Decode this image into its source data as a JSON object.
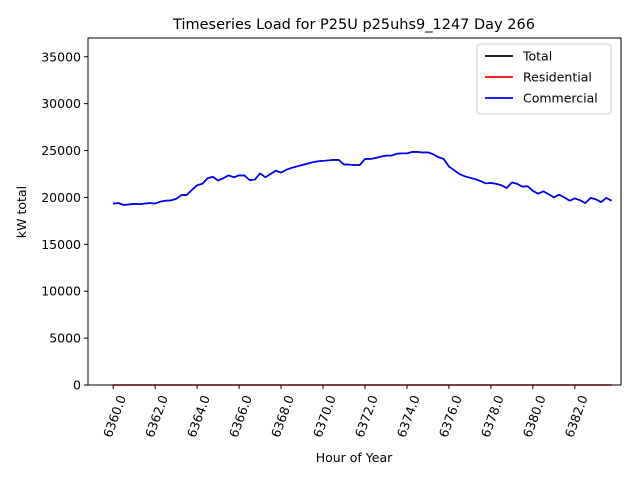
{
  "chart_data": {
    "type": "line",
    "title": "Timeseries Load for P25U p25uhs9_1247  Day 266",
    "xlabel": "Hour of Year",
    "ylabel": "kW total",
    "xlim": [
      6358.8,
      6384.2
    ],
    "ylim": [
      0,
      37000
    ],
    "xticks": [
      6360,
      6362,
      6364,
      6366,
      6368,
      6370,
      6372,
      6374,
      6376,
      6378,
      6380,
      6382
    ],
    "xtick_labels": [
      "6360.0",
      "6362.0",
      "6364.0",
      "6366.0",
      "6368.0",
      "6370.0",
      "6372.0",
      "6374.0",
      "6376.0",
      "6378.0",
      "6380.0",
      "6382.0"
    ],
    "yticks": [
      0,
      5000,
      10000,
      15000,
      20000,
      25000,
      30000,
      35000
    ],
    "ytick_labels": [
      "0",
      "5000",
      "10000",
      "15000",
      "20000",
      "25000",
      "30000",
      "35000"
    ],
    "legend_position": "top-right",
    "x": [
      6360.0,
      6360.25,
      6360.5,
      6360.75,
      6361.0,
      6361.25,
      6361.5,
      6361.75,
      6362.0,
      6362.25,
      6362.5,
      6362.75,
      6363.0,
      6363.25,
      6363.5,
      6363.75,
      6364.0,
      6364.25,
      6364.5,
      6364.75,
      6365.0,
      6365.25,
      6365.5,
      6365.75,
      6366.0,
      6366.25,
      6366.5,
      6366.75,
      6367.0,
      6367.25,
      6367.5,
      6367.75,
      6368.0,
      6368.25,
      6368.5,
      6368.75,
      6369.0,
      6369.25,
      6369.5,
      6369.75,
      6370.0,
      6370.25,
      6370.5,
      6370.75,
      6371.0,
      6371.25,
      6371.5,
      6371.75,
      6372.0,
      6372.25,
      6372.5,
      6372.75,
      6373.0,
      6373.25,
      6373.5,
      6373.75,
      6374.0,
      6374.25,
      6374.5,
      6374.75,
      6375.0,
      6375.25,
      6375.5,
      6375.75,
      6376.0,
      6376.25,
      6376.5,
      6376.75,
      6377.0,
      6377.25,
      6377.5,
      6377.75,
      6378.0,
      6378.25,
      6378.5,
      6378.75,
      6379.0,
      6379.25,
      6379.5,
      6379.75,
      6380.0,
      6380.25,
      6380.5,
      6380.75,
      6381.0,
      6381.25,
      6381.5,
      6381.75,
      6382.0,
      6382.25,
      6382.5,
      6382.75,
      6383.0,
      6383.25,
      6383.5,
      6383.75
    ],
    "series": [
      {
        "name": "Total",
        "color": "#000000",
        "values": [
          19350,
          19400,
          19200,
          19250,
          19320,
          19280,
          19350,
          19400,
          19350,
          19550,
          19650,
          19680,
          19850,
          20250,
          20250,
          20800,
          21300,
          21450,
          22050,
          22200,
          21800,
          22050,
          22350,
          22150,
          22350,
          22350,
          21850,
          21900,
          22550,
          22150,
          22500,
          22850,
          22650,
          22950,
          23150,
          23300,
          23450,
          23600,
          23750,
          23850,
          23900,
          23950,
          24000,
          24000,
          23500,
          23500,
          23450,
          23450,
          24100,
          24100,
          24200,
          24350,
          24450,
          24450,
          24650,
          24700,
          24700,
          24850,
          24850,
          24800,
          24800,
          24600,
          24300,
          24100,
          23300,
          22900,
          22500,
          22250,
          22100,
          21950,
          21750,
          21500,
          21550,
          21450,
          21300,
          21000,
          21600,
          21450,
          21150,
          21200,
          20700,
          20400,
          20650,
          20350,
          20000,
          20300,
          20000,
          19650,
          19900,
          19700,
          19400,
          19950,
          19800,
          19500,
          19950,
          19650
        ]
      },
      {
        "name": "Residential",
        "color": "#ff0000",
        "values": [
          0,
          0,
          0,
          0,
          0,
          0,
          0,
          0,
          0,
          0,
          0,
          0,
          0,
          0,
          0,
          0,
          0,
          0,
          0,
          0,
          0,
          0,
          0,
          0,
          0,
          0,
          0,
          0,
          0,
          0,
          0,
          0,
          0,
          0,
          0,
          0,
          0,
          0,
          0,
          0,
          0,
          0,
          0,
          0,
          0,
          0,
          0,
          0,
          0,
          0,
          0,
          0,
          0,
          0,
          0,
          0,
          0,
          0,
          0,
          0,
          0,
          0,
          0,
          0,
          0,
          0,
          0,
          0,
          0,
          0,
          0,
          0,
          0,
          0,
          0,
          0,
          0,
          0,
          0,
          0,
          0,
          0,
          0,
          0,
          0,
          0,
          0,
          0,
          0,
          0,
          0,
          0,
          0,
          0,
          0,
          0
        ]
      },
      {
        "name": "Commercial",
        "color": "#0000ff",
        "values": [
          19350,
          19400,
          19200,
          19250,
          19320,
          19280,
          19350,
          19400,
          19350,
          19550,
          19650,
          19680,
          19850,
          20250,
          20250,
          20800,
          21300,
          21450,
          22050,
          22200,
          21800,
          22050,
          22350,
          22150,
          22350,
          22350,
          21850,
          21900,
          22550,
          22150,
          22500,
          22850,
          22650,
          22950,
          23150,
          23300,
          23450,
          23600,
          23750,
          23850,
          23900,
          23950,
          24000,
          24000,
          23500,
          23500,
          23450,
          23450,
          24100,
          24100,
          24200,
          24350,
          24450,
          24450,
          24650,
          24700,
          24700,
          24850,
          24850,
          24800,
          24800,
          24600,
          24300,
          24100,
          23300,
          22900,
          22500,
          22250,
          22100,
          21950,
          21750,
          21500,
          21550,
          21450,
          21300,
          21000,
          21600,
          21450,
          21150,
          21200,
          20700,
          20400,
          20650,
          20350,
          20000,
          20300,
          20000,
          19650,
          19900,
          19700,
          19400,
          19950,
          19800,
          19500,
          19950,
          19650
        ]
      }
    ]
  }
}
